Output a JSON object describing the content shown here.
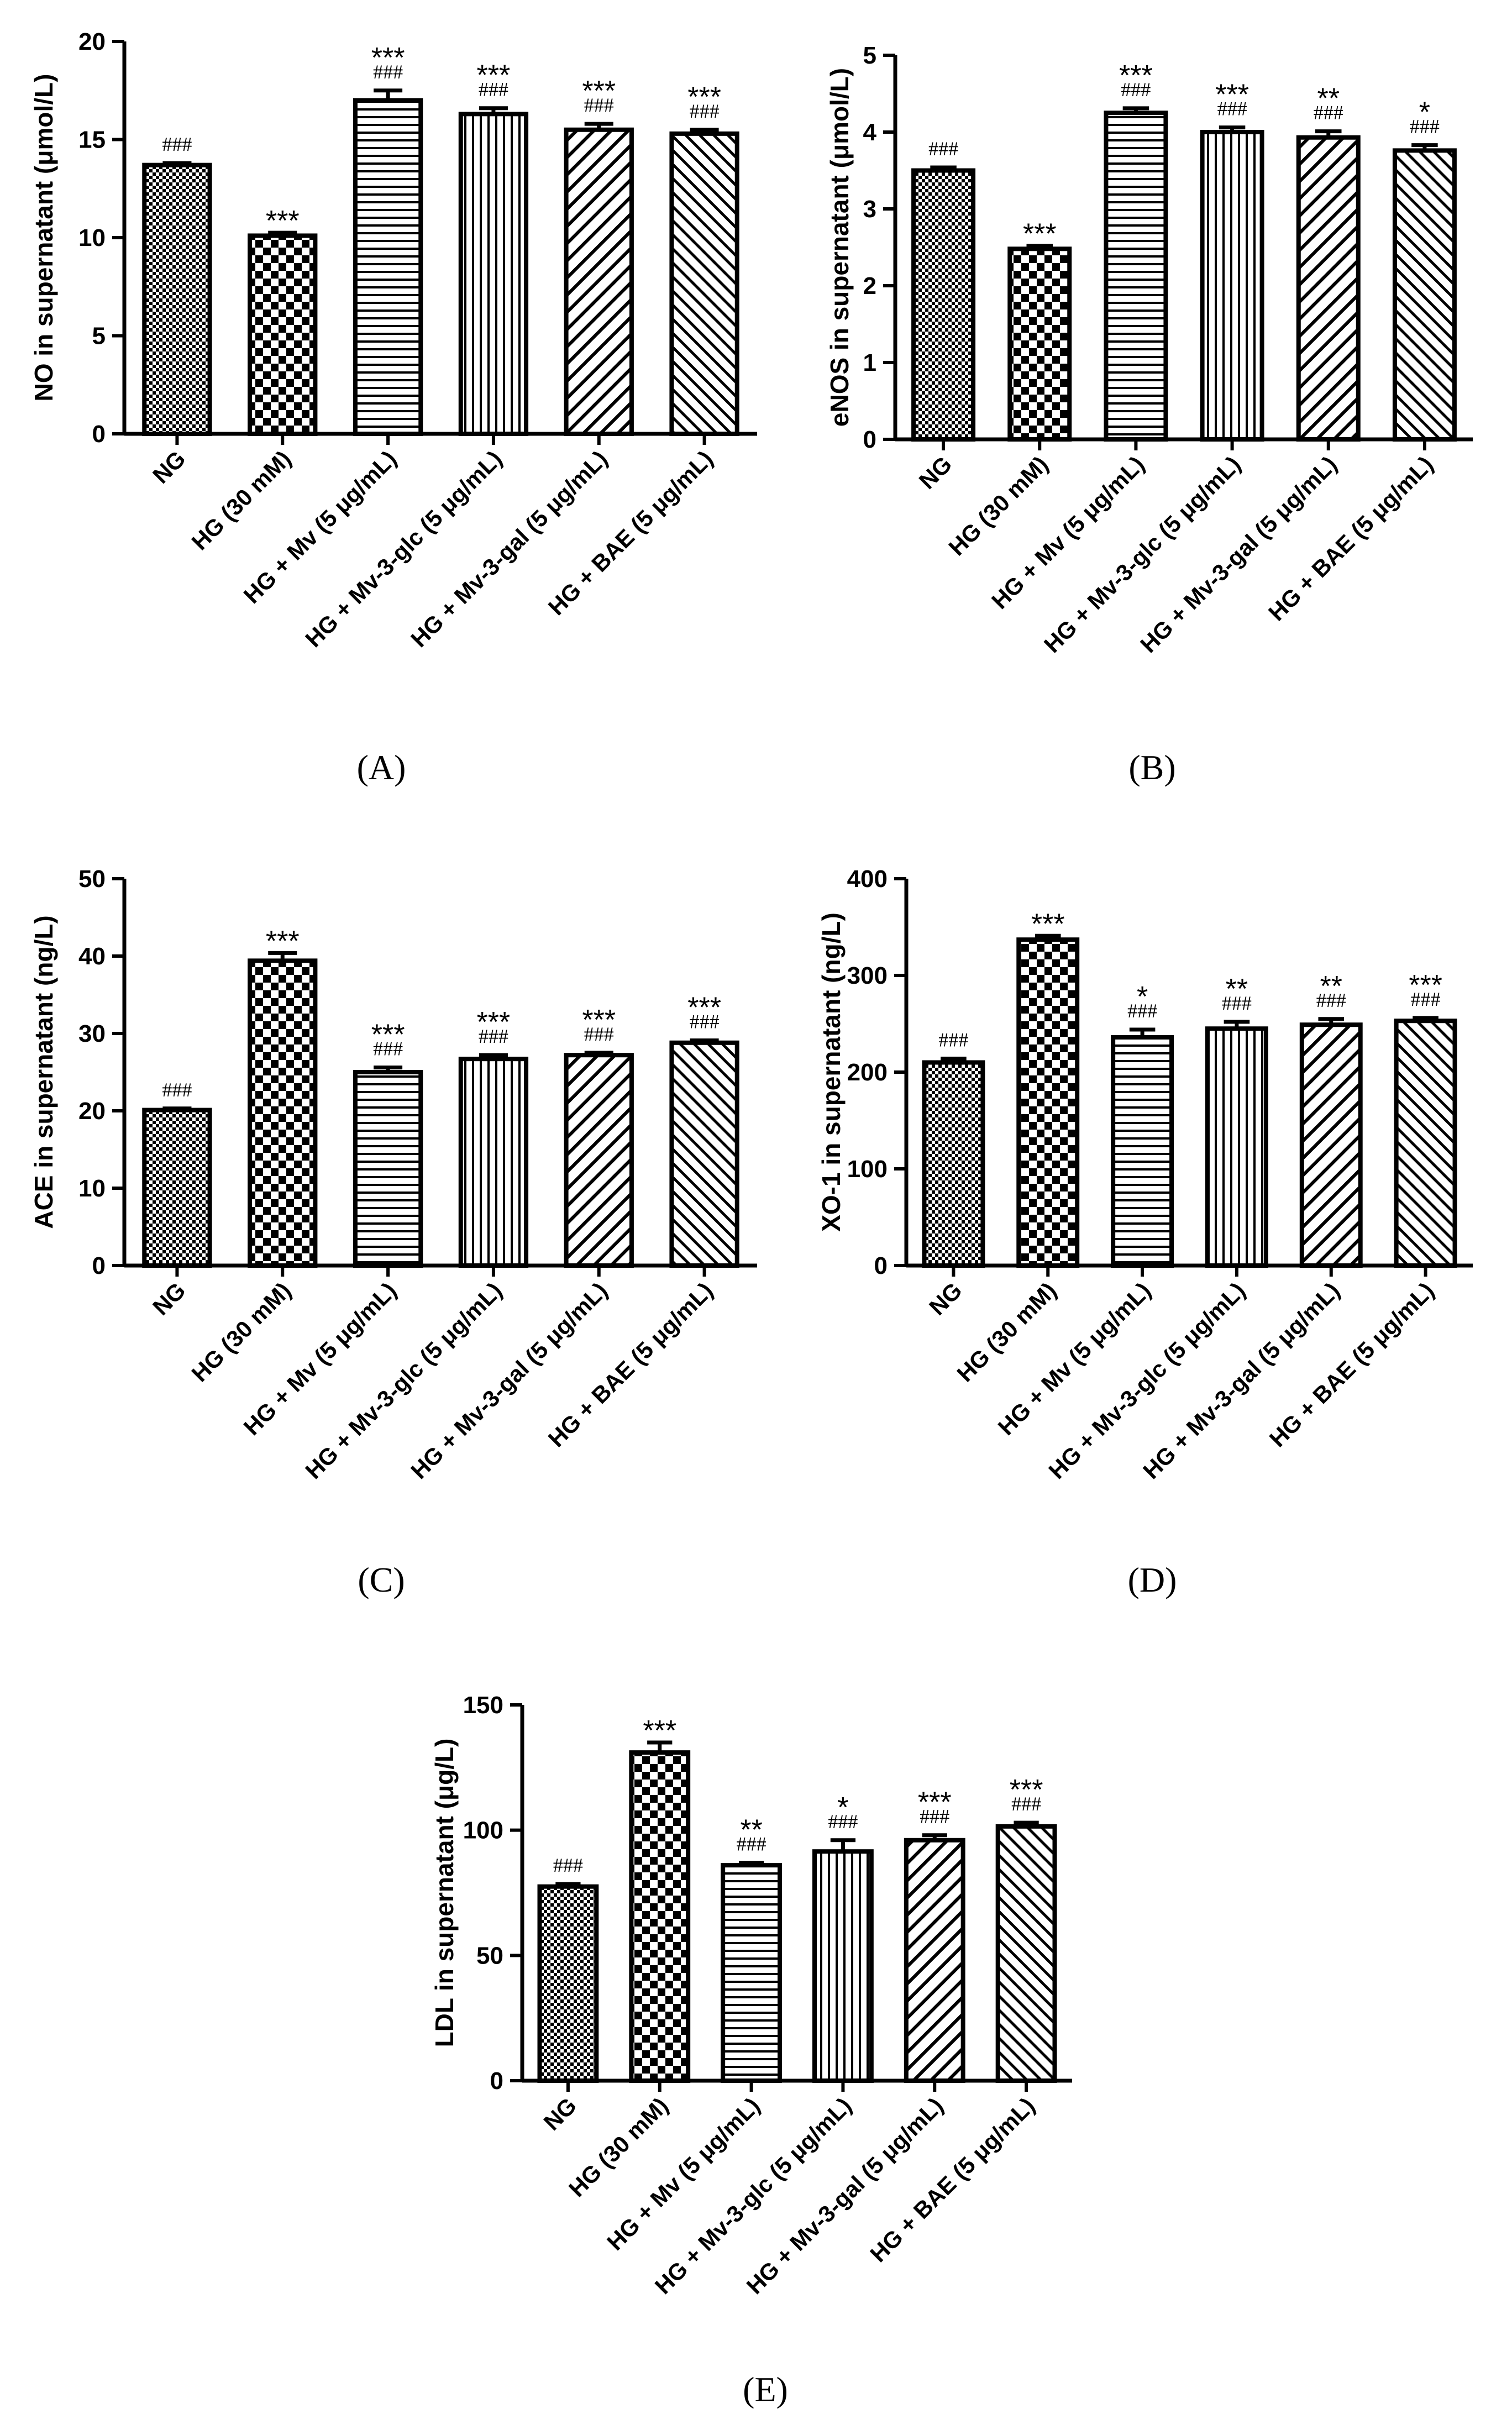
{
  "categories": [
    "NG",
    "HG (30 mM)",
    "HG + Mv (5 μg/mL)",
    "HG + Mv-3-glc (5 μg/mL)",
    "HG + Mv-3-gal (5 μg/mL)",
    "HG + BAE (5 μg/mL)"
  ],
  "chart_data": [
    {
      "panel": "A",
      "type": "bar",
      "caption": "(A)",
      "ylabel": "NO in supernatant (μmol/L)",
      "ylim": [
        0,
        20
      ],
      "yticks": [
        0,
        5,
        10,
        15,
        20
      ],
      "categories": [
        "NG",
        "HG (30 mM)",
        "HG + Mv (5 μg/mL)",
        "HG + Mv-3-glc (5 μg/mL)",
        "HG + Mv-3-gal (5 μg/mL)",
        "HG + BAE (5 μg/mL)"
      ],
      "values": [
        13.7,
        10.1,
        17.0,
        16.3,
        15.5,
        15.3
      ],
      "errors": [
        0.1,
        0.15,
        0.5,
        0.3,
        0.3,
        0.2
      ],
      "sig_star": [
        "",
        "***",
        "***",
        "***",
        "***",
        "***"
      ],
      "sig_hash": [
        "###",
        "",
        "###",
        "###",
        "###",
        "###"
      ]
    },
    {
      "panel": "B",
      "type": "bar",
      "caption": "(B)",
      "ylabel": "eNOS in supernatant (μmol/L)",
      "ylim": [
        0,
        5
      ],
      "yticks": [
        0,
        1,
        2,
        3,
        4,
        5
      ],
      "categories": [
        "NG",
        "HG (30 mM)",
        "HG + Mv (5 μg/mL)",
        "HG + Mv-3-glc (5 μg/mL)",
        "HG + Mv-3-gal (5 μg/mL)",
        "HG + BAE (5 μg/mL)"
      ],
      "values": [
        3.5,
        2.48,
        4.25,
        4.0,
        3.93,
        3.76
      ],
      "errors": [
        0.04,
        0.04,
        0.06,
        0.06,
        0.08,
        0.07
      ],
      "sig_star": [
        "",
        "***",
        "***",
        "***",
        "**",
        "*"
      ],
      "sig_hash": [
        "###",
        "",
        "###",
        "###",
        "###",
        "###"
      ]
    },
    {
      "panel": "C",
      "type": "bar",
      "caption": "(C)",
      "ylabel": "ACE in supernatant (ng/L)",
      "ylim": [
        0,
        50
      ],
      "yticks": [
        0,
        10,
        20,
        30,
        40,
        50
      ],
      "categories": [
        "NG",
        "HG (30 mM)",
        "HG + Mv (5 μg/mL)",
        "HG + Mv-3-glc (5 μg/mL)",
        "HG + Mv-3-gal (5 μg/mL)",
        "HG + BAE (5 μg/mL)"
      ],
      "values": [
        20.1,
        39.4,
        25.0,
        26.7,
        27.2,
        28.8
      ],
      "errors": [
        0.2,
        1.0,
        0.6,
        0.5,
        0.3,
        0.3
      ],
      "sig_star": [
        "",
        "***",
        "***",
        "***",
        "***",
        "***"
      ],
      "sig_hash": [
        "###",
        "",
        "###",
        "###",
        "###",
        "###"
      ]
    },
    {
      "panel": "D",
      "type": "bar",
      "caption": "(D)",
      "ylabel": "XO-1 in supernatant (ng/L)",
      "ylim": [
        0,
        400
      ],
      "yticks": [
        0,
        100,
        200,
        300,
        400
      ],
      "categories": [
        "NG",
        "HG (30 mM)",
        "HG + Mv (5 μg/mL)",
        "HG + Mv-3-glc (5 μg/mL)",
        "HG + Mv-3-gal (5 μg/mL)",
        "HG + BAE (5 μg/mL)"
      ],
      "values": [
        210,
        337,
        236,
        245,
        249,
        253
      ],
      "errors": [
        4,
        4,
        8,
        7,
        6,
        3
      ],
      "sig_star": [
        "",
        "***",
        "*",
        "**",
        "**",
        "***"
      ],
      "sig_hash": [
        "###",
        "",
        "###",
        "###",
        "###",
        "###"
      ]
    },
    {
      "panel": "E",
      "type": "bar",
      "caption": "(E)",
      "ylabel": "LDL in supernatant (μg/L)",
      "ylim": [
        0,
        150
      ],
      "yticks": [
        0,
        50,
        100,
        150
      ],
      "categories": [
        "NG",
        "HG (30 mM)",
        "HG + Mv (5 μg/mL)",
        "HG + Mv-3-glc (5 μg/mL)",
        "HG + Mv-3-gal (5 μg/mL)",
        "HG + BAE (5 μg/mL)"
      ],
      "values": [
        77.5,
        131,
        86,
        91.5,
        96,
        101.5
      ],
      "errors": [
        1,
        4,
        1,
        4.5,
        2,
        1.5
      ],
      "sig_star": [
        "",
        "***",
        "**",
        "*",
        "***",
        "***"
      ],
      "sig_hash": [
        "###",
        "",
        "###",
        "###",
        "###",
        "###"
      ]
    }
  ]
}
